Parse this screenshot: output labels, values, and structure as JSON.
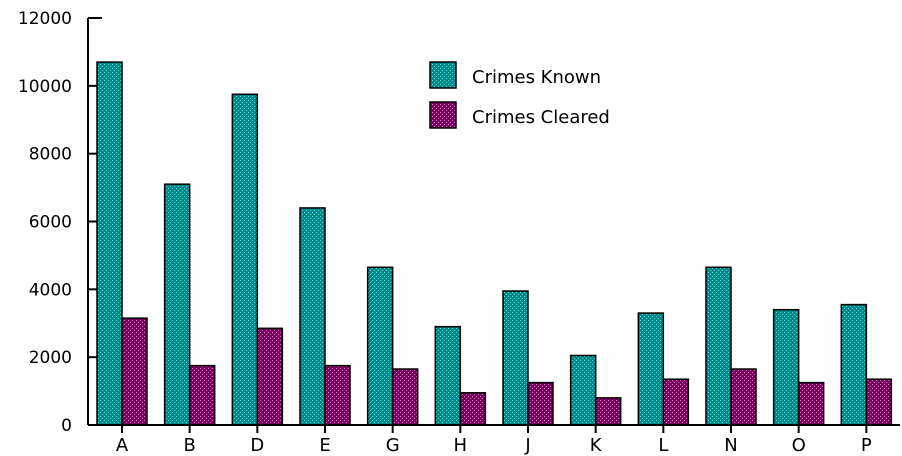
{
  "chart_data": {
    "type": "bar",
    "categories": [
      "A",
      "B",
      "D",
      "E",
      "G",
      "H",
      "J",
      "K",
      "L",
      "N",
      "O",
      "P"
    ],
    "series": [
      {
        "name": "Crimes Known",
        "color": "#008b8b",
        "values": [
          10700,
          7100,
          9750,
          6400,
          4650,
          2900,
          3950,
          2050,
          3300,
          4650,
          3400,
          3550
        ]
      },
      {
        "name": "Crimes Cleared",
        "color": "#7a0060",
        "values": [
          3150,
          1750,
          2850,
          1750,
          1650,
          950,
          1250,
          800,
          1350,
          1650,
          1250,
          1350
        ]
      }
    ],
    "yticks": [
      "0",
      "2000",
      "4000",
      "6000",
      "8000",
      "10000",
      "12000"
    ],
    "ylim": [
      0,
      12000
    ],
    "legend_position": "top-right",
    "grid": false
  }
}
